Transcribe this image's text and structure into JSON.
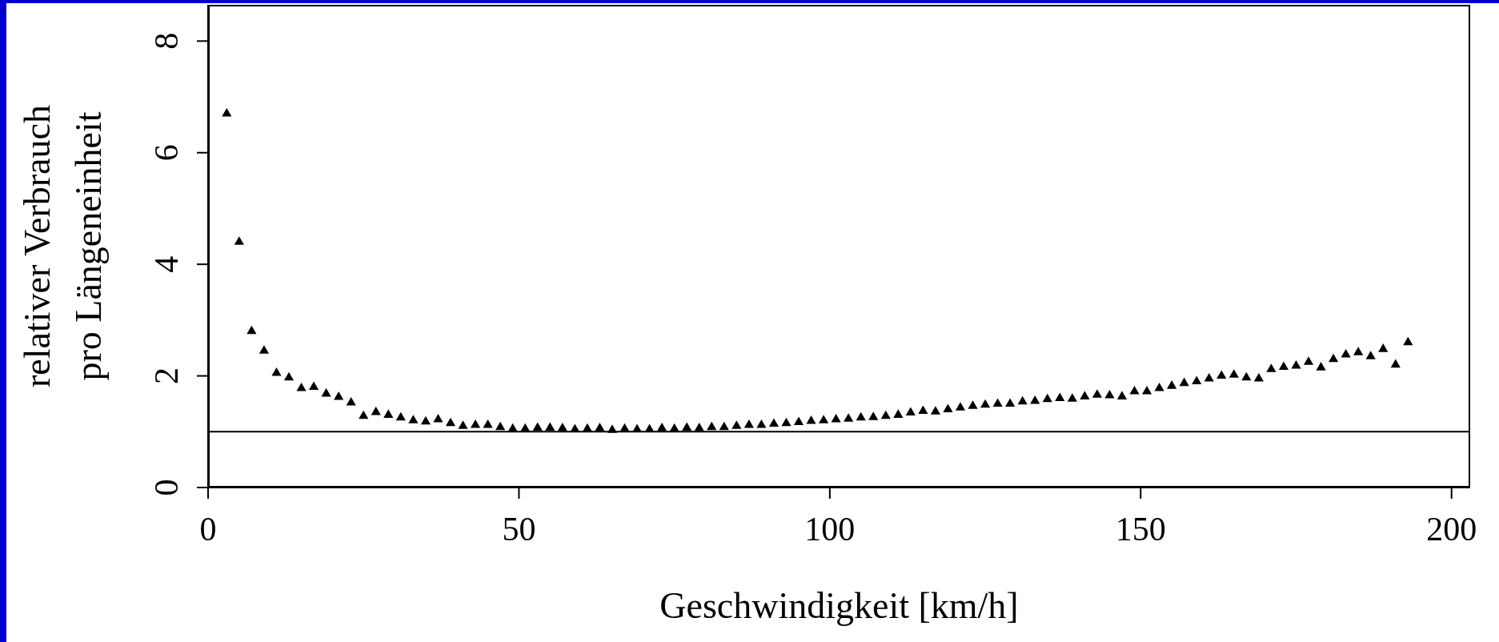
{
  "chart_data": {
    "type": "scatter",
    "xlabel": "Geschwindigkeit [km/h]",
    "ylabel": "relativer Verbrauch\npro Längeneinheit",
    "x": [
      3,
      5,
      7,
      9,
      11,
      13,
      15,
      17,
      19,
      21,
      23,
      25,
      27,
      29,
      31,
      33,
      35,
      37,
      39,
      41,
      43,
      45,
      47,
      49,
      51,
      53,
      55,
      57,
      59,
      61,
      63,
      65,
      67,
      69,
      71,
      73,
      75,
      77,
      79,
      81,
      83,
      85,
      87,
      89,
      91,
      93,
      95,
      97,
      99,
      101,
      103,
      105,
      107,
      109,
      111,
      113,
      115,
      117,
      119,
      121,
      123,
      125,
      127,
      129,
      131,
      133,
      135,
      137,
      139,
      141,
      143,
      145,
      147,
      149,
      151,
      153,
      155,
      157,
      159,
      161,
      163,
      165,
      167,
      169,
      171,
      173,
      175,
      177,
      179,
      181,
      183,
      185,
      187,
      189,
      191,
      193
    ],
    "series": [
      {
        "color": "#000000",
        "values": [
          6.7,
          4.4,
          2.8,
          2.45,
          2.05,
          1.97,
          1.78,
          1.8,
          1.68,
          1.62,
          1.52,
          1.28,
          1.35,
          1.3,
          1.25,
          1.2,
          1.18,
          1.22,
          1.15,
          1.1,
          1.12,
          1.12,
          1.08,
          1.05,
          1.05,
          1.07,
          1.07,
          1.06,
          1.04,
          1.05,
          1.06,
          1.03,
          1.05,
          1.04,
          1.04,
          1.06,
          1.05,
          1.07,
          1.06,
          1.08,
          1.08,
          1.1,
          1.12,
          1.12,
          1.14,
          1.15,
          1.17,
          1.19,
          1.2,
          1.22,
          1.23,
          1.25,
          1.26,
          1.28,
          1.3,
          1.34,
          1.37,
          1.36,
          1.4,
          1.43,
          1.46,
          1.48,
          1.5,
          1.5,
          1.54,
          1.55,
          1.58,
          1.6,
          1.59,
          1.63,
          1.66,
          1.65,
          1.63,
          1.72,
          1.72,
          1.78,
          1.82,
          1.87,
          1.9,
          1.95,
          2.0,
          2.02,
          1.97,
          1.95,
          2.12,
          2.16,
          2.18,
          2.25,
          2.15,
          2.3,
          2.38,
          2.42,
          2.35,
          2.48,
          2.2,
          2.6
        ]
      }
    ],
    "xlim": [
      0,
      203
    ],
    "xticks": [
      0,
      50,
      100,
      150,
      200
    ],
    "ylim": [
      0,
      8.65
    ],
    "yticks": [
      0,
      2,
      4,
      6,
      8
    ],
    "ref_lines": [
      {
        "axis": "y",
        "value": 1,
        "color": "#000000"
      }
    ],
    "marker": "triangle",
    "grid": false,
    "legend": false
  }
}
